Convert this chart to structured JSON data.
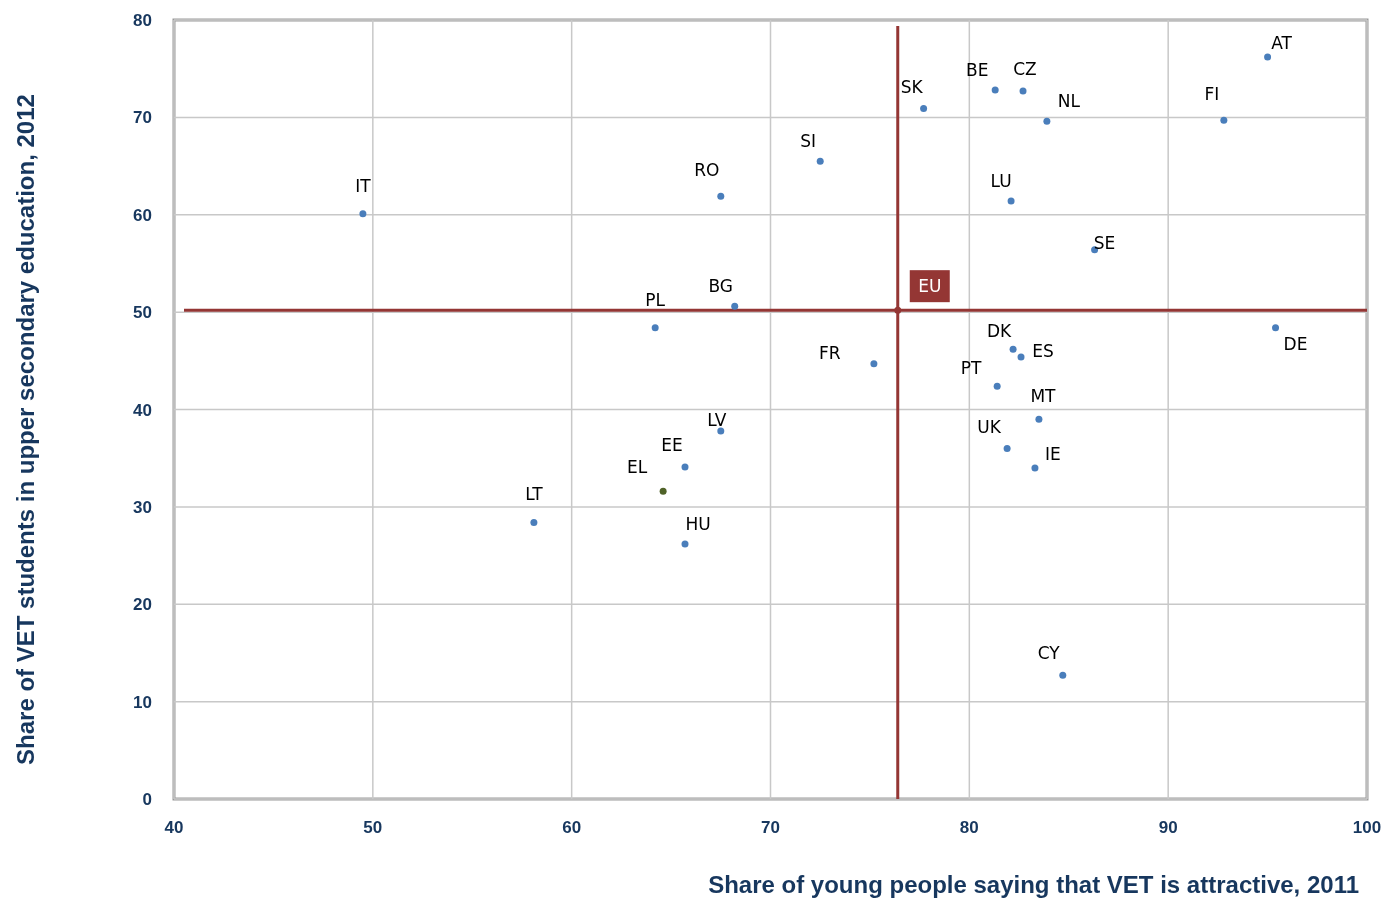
{
  "chart_data": {
    "type": "scatter",
    "xlabel": "Share of young people saying that VET is attractive, 2011",
    "ylabel": "Share of VET students in upper secondary education, 2012",
    "xlim": [
      40,
      100
    ],
    "xticks": [
      40,
      50,
      60,
      70,
      80,
      90,
      100
    ],
    "ylim": [
      0,
      80
    ],
    "yticks": [
      0,
      10,
      20,
      30,
      40,
      50,
      60,
      70,
      80
    ],
    "grid": true,
    "marker": "circle",
    "series": [
      {
        "color": "#4a7ebb",
        "x": [
          49.5,
          67.5,
          64.2,
          68.2,
          72.5,
          77.7,
          81.3,
          82.7,
          83.9,
          95.0,
          92.8,
          82.1,
          86.3,
          95.4,
          75.2,
          82.2,
          82.6,
          81.4,
          83.5,
          81.9,
          83.3,
          84.7,
          67.5,
          65.7,
          58.1,
          65.7
        ],
        "values": [
          60.1,
          61.9,
          48.4,
          50.6,
          65.5,
          70.9,
          72.8,
          72.7,
          69.6,
          76.2,
          69.7,
          61.4,
          56.4,
          48.4,
          44.7,
          46.2,
          45.4,
          42.4,
          39.0,
          36.0,
          34.0,
          12.7,
          37.8,
          34.1,
          28.4,
          26.2
        ],
        "value_labels": [
          "IT",
          "RO",
          "PL",
          "BG",
          "SI",
          "SK",
          "BE",
          "CZ",
          "NL",
          "AT",
          "FI",
          "LU",
          "SE",
          "DE",
          "FR",
          "DK",
          "ES",
          "PT",
          "MT",
          "UK",
          "IE",
          "CY",
          "LV",
          "EE",
          "LT",
          "HU"
        ]
      },
      {
        "color": "#4f6228",
        "x": [
          64.6
        ],
        "values": [
          31.6
        ],
        "value_labels": [
          "EL"
        ]
      },
      {
        "color": "#943634",
        "x": [
          76.4
        ],
        "values": [
          50.2
        ]
      }
    ],
    "ref_lines": [
      {
        "axis": "x",
        "value": 76.4,
        "color": "#943634"
      },
      {
        "axis": "y",
        "value": 50.2,
        "color": "#943634"
      }
    ],
    "annotations": [
      {
        "text": "EU",
        "x": 76.4,
        "y": 50.2
      }
    ]
  }
}
